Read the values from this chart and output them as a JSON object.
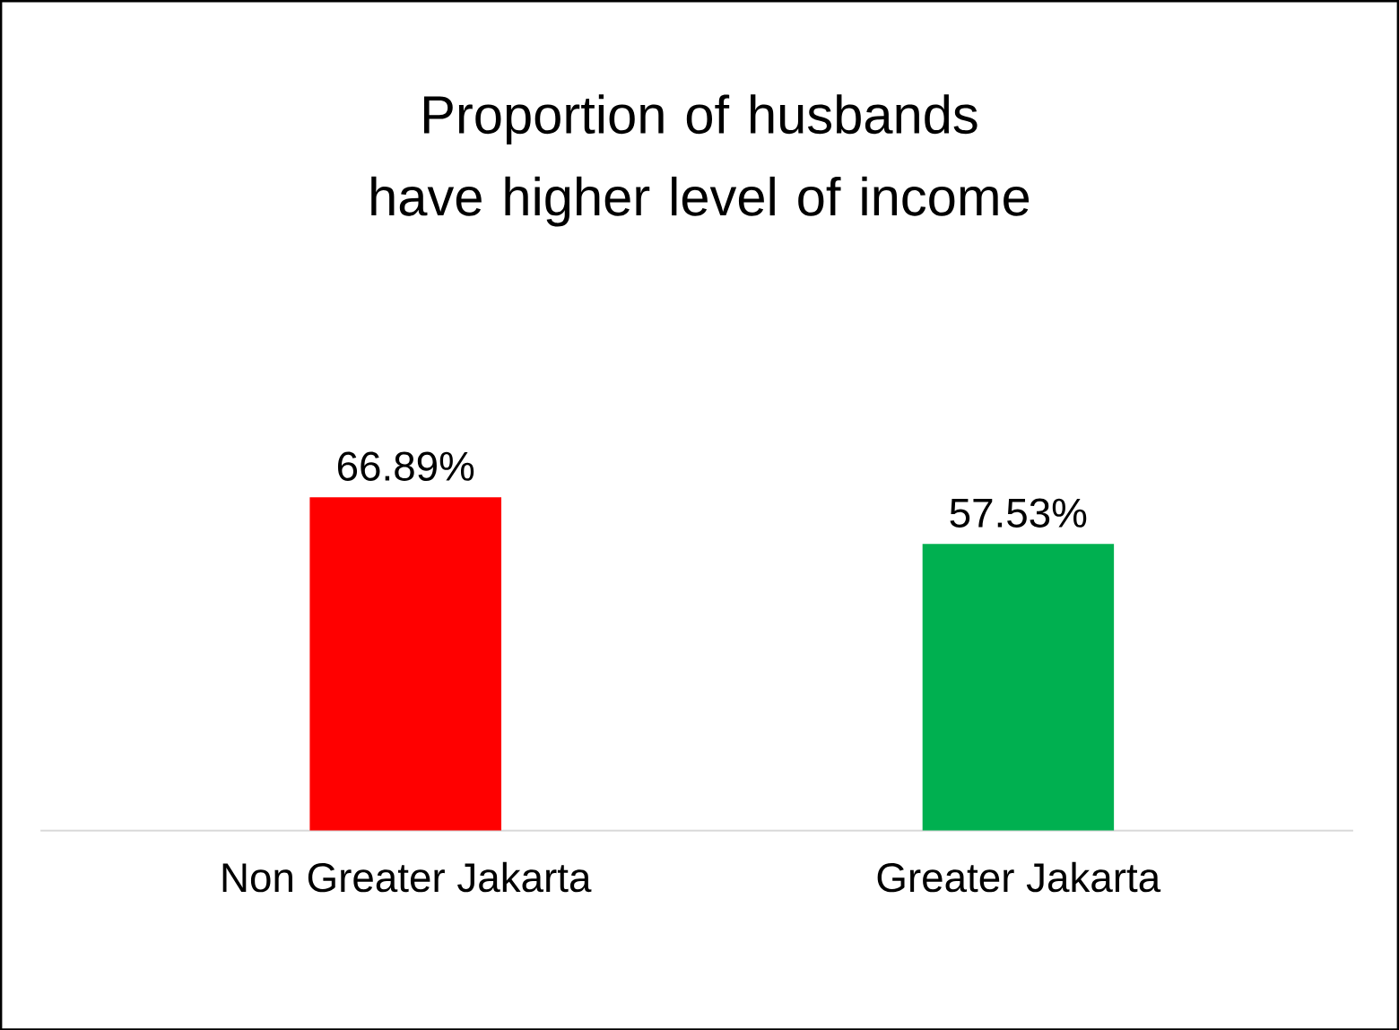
{
  "chart_data": {
    "type": "bar",
    "title": "Proportion of husbands have higher level of income",
    "categories": [
      "Non Greater Jakarta",
      "Greater Jakarta"
    ],
    "values": [
      66.89,
      57.53
    ],
    "colors": [
      "#ff0000",
      "#00b050"
    ],
    "value_labels": [
      "66.89%",
      "57.53%"
    ]
  }
}
